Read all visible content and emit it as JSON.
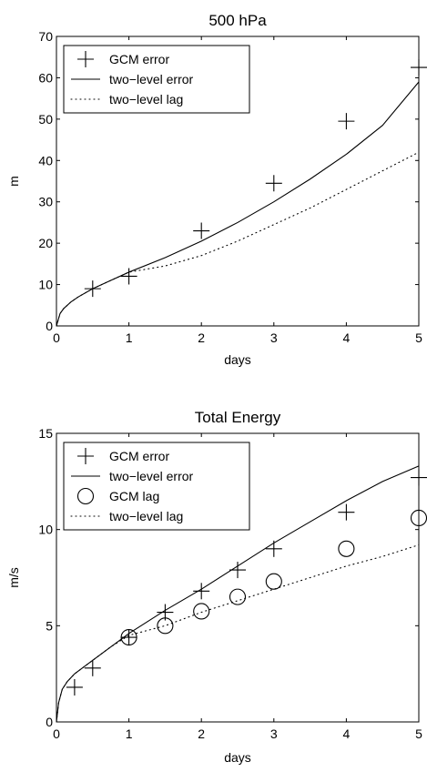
{
  "chart_data": [
    {
      "type": "line",
      "title": "500 hPa",
      "xlabel": "days",
      "ylabel": "m",
      "xlim": [
        0,
        5
      ],
      "ylim": [
        0,
        70
      ],
      "xticks": [
        "0",
        "1",
        "2",
        "3",
        "4",
        "5"
      ],
      "yticks": [
        "0",
        "10",
        "20",
        "30",
        "40",
        "50",
        "60",
        "70"
      ],
      "grid": false,
      "legend_position": "top-left",
      "series": [
        {
          "name": "GCM error",
          "style": "plus-marker",
          "points": [
            [
              0.5,
              9.0
            ],
            [
              1.0,
              12.0
            ],
            [
              2.0,
              23.0
            ],
            [
              3.0,
              34.5
            ],
            [
              4.0,
              49.5
            ],
            [
              5.0,
              62.5
            ]
          ]
        },
        {
          "name": "two−level error",
          "style": "solid",
          "points": [
            [
              0,
              0
            ],
            [
              0.05,
              3.0
            ],
            [
              0.1,
              4.2
            ],
            [
              0.2,
              5.8
            ],
            [
              0.3,
              7.0
            ],
            [
              0.5,
              9.0
            ],
            [
              0.75,
              11.0
            ],
            [
              1.0,
              13.0
            ],
            [
              1.5,
              16.5
            ],
            [
              2.0,
              20.5
            ],
            [
              2.5,
              25.0
            ],
            [
              3.0,
              30.0
            ],
            [
              3.5,
              35.5
            ],
            [
              4.0,
              41.5
            ],
            [
              4.5,
              48.5
            ],
            [
              5.0,
              59.0
            ]
          ]
        },
        {
          "name": "two−level lag",
          "style": "dotted",
          "points": [
            [
              0,
              0
            ],
            [
              0.05,
              3.0
            ],
            [
              0.1,
              4.2
            ],
            [
              0.2,
              5.8
            ],
            [
              0.3,
              7.0
            ],
            [
              0.5,
              9.0
            ],
            [
              0.75,
              11.0
            ],
            [
              1.0,
              13.0
            ],
            [
              1.5,
              14.5
            ],
            [
              2.0,
              17.0
            ],
            [
              2.5,
              20.5
            ],
            [
              3.0,
              24.5
            ],
            [
              3.5,
              28.5
            ],
            [
              4.0,
              33.0
            ],
            [
              4.5,
              37.5
            ],
            [
              5.0,
              42.0
            ]
          ]
        }
      ]
    },
    {
      "type": "line",
      "title": "Total Energy",
      "xlabel": "days",
      "ylabel": "m/s",
      "xlim": [
        0,
        5
      ],
      "ylim": [
        0,
        15
      ],
      "xticks": [
        "0",
        "1",
        "2",
        "3",
        "4",
        "5"
      ],
      "yticks": [
        "0",
        "5",
        "10",
        "15"
      ],
      "grid": false,
      "legend_position": "top-left",
      "series": [
        {
          "name": "GCM error",
          "style": "plus-marker",
          "points": [
            [
              0.25,
              1.8
            ],
            [
              0.5,
              2.8
            ],
            [
              1.0,
              4.4
            ],
            [
              1.5,
              5.7
            ],
            [
              2.0,
              6.8
            ],
            [
              2.5,
              7.9
            ],
            [
              3.0,
              9.0
            ],
            [
              4.0,
              10.9
            ],
            [
              5.0,
              12.7
            ]
          ]
        },
        {
          "name": "two−level error",
          "style": "solid",
          "points": [
            [
              0,
              0
            ],
            [
              0.03,
              1.0
            ],
            [
              0.08,
              1.7
            ],
            [
              0.15,
              2.1
            ],
            [
              0.25,
              2.5
            ],
            [
              0.5,
              3.2
            ],
            [
              0.75,
              3.9
            ],
            [
              1.0,
              4.6
            ],
            [
              1.5,
              5.8
            ],
            [
              2.0,
              6.9
            ],
            [
              2.5,
              8.1
            ],
            [
              3.0,
              9.3
            ],
            [
              3.5,
              10.4
            ],
            [
              4.0,
              11.5
            ],
            [
              4.5,
              12.5
            ],
            [
              5.0,
              13.3
            ]
          ]
        },
        {
          "name": "GCM lag",
          "style": "circle-marker",
          "points": [
            [
              1.0,
              4.4
            ],
            [
              1.5,
              5.0
            ],
            [
              2.0,
              5.75
            ],
            [
              2.5,
              6.5
            ],
            [
              3.0,
              7.3
            ],
            [
              4.0,
              9.0
            ],
            [
              5.0,
              10.6
            ]
          ]
        },
        {
          "name": "two−level lag",
          "style": "dotted",
          "points": [
            [
              0,
              0
            ],
            [
              0.03,
              1.0
            ],
            [
              0.08,
              1.7
            ],
            [
              0.15,
              2.1
            ],
            [
              0.25,
              2.5
            ],
            [
              0.5,
              3.2
            ],
            [
              0.75,
              3.9
            ],
            [
              1.0,
              4.5
            ],
            [
              1.5,
              5.0
            ],
            [
              2.0,
              5.7
            ],
            [
              2.5,
              6.3
            ],
            [
              3.0,
              6.9
            ],
            [
              3.5,
              7.5
            ],
            [
              4.0,
              8.1
            ],
            [
              4.5,
              8.6
            ],
            [
              5.0,
              9.2
            ]
          ]
        }
      ]
    }
  ]
}
